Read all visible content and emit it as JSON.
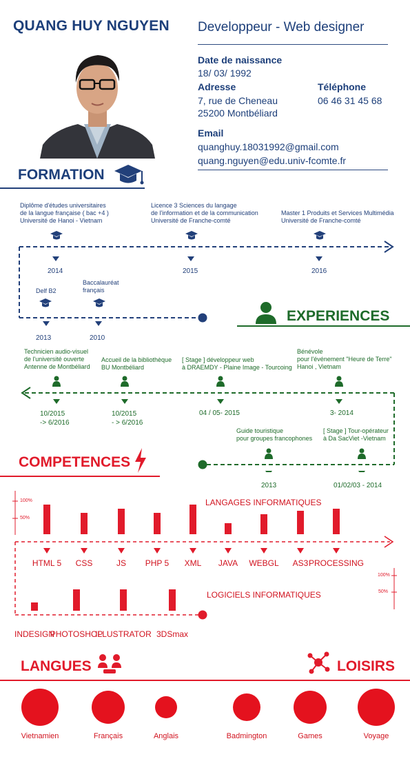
{
  "header": {
    "name": "QUANG HUY NGUYEN",
    "job_title": "Developpeur - Web designer",
    "birth_label": "Date de naissance",
    "birth_value": "18/ 03/ 1992",
    "address_label": "Adresse",
    "address_line1": "7, rue de Cheneau",
    "address_line2": "25200 Montbéliard",
    "phone_label": "Téléphone",
    "phone_value": "06 46 31 45 68",
    "email_label": "Email",
    "email1": "quanghuy.18031992@gmail.com",
    "email2": "quang.nguyen@edu.univ-fcomte.fr"
  },
  "formation": {
    "title": "FORMATION",
    "items": [
      {
        "l1": "Diplôme d'études universitaires",
        "l2": "de la langue française ( bac +4 )",
        "l3": "Université de Hanoi - Vietnam",
        "year": "2014"
      },
      {
        "l1": "Licence 3 Sciences du langage",
        "l2": "de l'information et de la communication",
        "l3": "Université de Franche-comté",
        "year": "2015"
      },
      {
        "l1": "Master 1 Produits et Services Multimédia",
        "l2": "Université de Franche-comté",
        "l3": "",
        "year": "2016"
      },
      {
        "l1": "Delf B2",
        "l2": "",
        "l3": "",
        "year": "2013"
      },
      {
        "l1": "Baccalauréat",
        "l2": "français",
        "l3": "",
        "year": "2010"
      }
    ]
  },
  "experiences": {
    "title": "EXPERIENCES",
    "items": [
      {
        "l1": "Technicien audio-visuel",
        "l2": "de l'université ouverte",
        "l3": "Antenne de Montbéliard",
        "date1": "10/2015",
        "date2": "-> 6/2016"
      },
      {
        "l1": "Accueil de la bibliothèque",
        "l2": "BU Montbéliard",
        "l3": "",
        "date1": "10/2015",
        "date2": "- > 6/2016"
      },
      {
        "l1": "[ Stage ] développeur web",
        "l2": "à DRAEMDY - Plaine Image - Tourcoing",
        "l3": "",
        "date1": "04 / 05- 2015",
        "date2": ""
      },
      {
        "l1": "Bénévole",
        "l2": "pour l'événement \"Heure de Terre\"",
        "l3": "Hanoi , Vietnam",
        "date1": "3- 2014",
        "date2": ""
      },
      {
        "l1": "Guide touristique",
        "l2": "pour groupes francophones",
        "l3": "",
        "date1": "2013",
        "date2": ""
      },
      {
        "l1": "[ Stage ] Tour-opérateur",
        "l2": "à Da SacViet -Vietnam",
        "l3": "",
        "date1": "01/02/03 - 2014",
        "date2": ""
      }
    ]
  },
  "competences": {
    "title": "COMPETENCES",
    "scale_100": "100%",
    "scale_50": "50%",
    "languages_title": "LANGAGES INFORMATIQUES",
    "software_title": "LOGICIELS INFORMATIQUES",
    "languages": [
      {
        "name": "HTML 5",
        "level": 0.92
      },
      {
        "name": "CSS",
        "level": 0.65
      },
      {
        "name": "JS",
        "level": 0.78
      },
      {
        "name": "PHP 5",
        "level": 0.65
      },
      {
        "name": "XML",
        "level": 0.92
      },
      {
        "name": "JAVA",
        "level": 0.35
      },
      {
        "name": "WEBGL",
        "level": 0.62
      },
      {
        "name": "AS3",
        "level": 0.72
      },
      {
        "name": "PROCESSING",
        "level": 0.78
      }
    ],
    "software": [
      {
        "name": "INDESIGN",
        "level": 0.32
      },
      {
        "name": "PHOTOSHOP",
        "level": 0.82
      },
      {
        "name": "ILLUSTRATOR",
        "level": 0.82
      },
      {
        "name": "3DSmax",
        "level": 0.82
      }
    ]
  },
  "langues": {
    "title": "LANGUES",
    "items": [
      {
        "name": "Vietnamien",
        "size": 1.0
      },
      {
        "name": "Français",
        "size": 0.9
      },
      {
        "name": "Anglais",
        "size": 0.6
      }
    ]
  },
  "loisirs": {
    "title": "LOISIRS",
    "items": [
      {
        "name": "Badmington",
        "size": 0.75
      },
      {
        "name": "Games",
        "size": 0.9
      },
      {
        "name": "Voyage",
        "size": 1.0
      }
    ]
  },
  "colors": {
    "navy": "#1d3f7a",
    "green": "#1e6b2a",
    "red": "#e11b2b"
  }
}
